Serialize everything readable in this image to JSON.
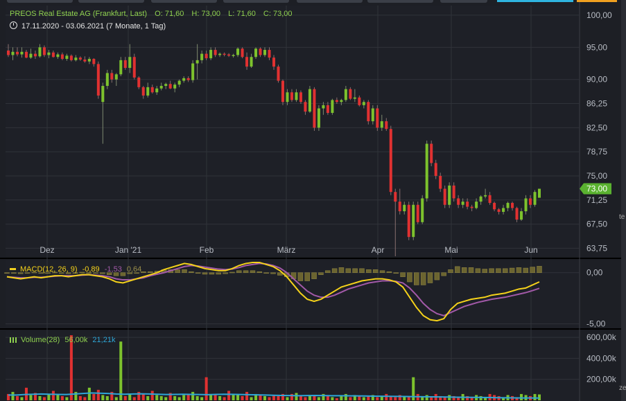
{
  "header": {
    "title": "PREOS Real Estate AG (Frankfurt, Last)",
    "open_label": "O:",
    "open": "71,60",
    "high_label": "H:",
    "high": "73,00",
    "low_label": "L:",
    "low": "71,60",
    "close_label": "C:",
    "close": "73,00",
    "range": "17.11.2020 - 03.06.2021",
    "period": "(7 Monate, 1 Tag)"
  },
  "price_axis_ticks": [
    "100,00",
    "95,00",
    "90,00",
    "86,25",
    "82,50",
    "78,75",
    "75,00",
    "71,25",
    "67,50",
    "63,75"
  ],
  "current_price_tag": "73,00",
  "x_axis_ticks": [
    "Dez",
    "Jan '21",
    "Feb",
    "März",
    "Apr",
    "Mai",
    "Jun"
  ],
  "macd": {
    "label": "MACD(12, 26, 9)",
    "macd_value": "-0,89",
    "signal_value": "-1,53",
    "hist_value": "0,64",
    "axis_ticks": [
      "0,00",
      "-5,00"
    ]
  },
  "volume": {
    "label": "Volume(28)",
    "value1": "56,00k",
    "value2": "21,21k",
    "axis_ticks": [
      "600,00k",
      "400,00k",
      "200,00k"
    ]
  },
  "colors": {
    "up": "#7dc22d",
    "down": "#e03131",
    "macd_line": "#f5d21a",
    "signal_line": "#a259a8",
    "hist": "#6b6430",
    "vol_ma": "#2ea7d8",
    "bg": "#1d1f25",
    "grid": "#30333a",
    "tag": "#5ab230",
    "title_green": "#8fd14f"
  },
  "edge_texts": {
    "right_top": "te",
    "right_bottom": "ze"
  },
  "chart_data": {
    "type": "candlestick",
    "y_range": [
      62.5,
      101.5
    ],
    "x_axis": {
      "categories": [
        "Dez",
        "Jan '21",
        "Feb",
        "März",
        "Apr",
        "Mai",
        "Jun"
      ]
    },
    "candles": [
      {
        "o": 94.5,
        "h": 95.5,
        "l": 93.5,
        "c": 93.8
      },
      {
        "o": 93.8,
        "h": 95.0,
        "l": 93.0,
        "c": 94.3
      },
      {
        "o": 94.3,
        "h": 95.0,
        "l": 93.6,
        "c": 93.9
      },
      {
        "o": 93.9,
        "h": 95.0,
        "l": 93.4,
        "c": 94.3
      },
      {
        "o": 94.3,
        "h": 94.6,
        "l": 93.3,
        "c": 93.4
      },
      {
        "o": 93.4,
        "h": 94.8,
        "l": 93.2,
        "c": 94.0
      },
      {
        "o": 94.0,
        "h": 94.5,
        "l": 93.2,
        "c": 93.6
      },
      {
        "o": 93.6,
        "h": 95.5,
        "l": 93.4,
        "c": 95.0
      },
      {
        "o": 95.0,
        "h": 95.3,
        "l": 93.5,
        "c": 93.8
      },
      {
        "o": 93.8,
        "h": 94.6,
        "l": 93.3,
        "c": 94.2
      },
      {
        "o": 94.2,
        "h": 94.5,
        "l": 93.4,
        "c": 93.5
      },
      {
        "o": 93.5,
        "h": 94.2,
        "l": 93.2,
        "c": 93.9
      },
      {
        "o": 93.9,
        "h": 94.2,
        "l": 93.0,
        "c": 93.2
      },
      {
        "o": 93.2,
        "h": 94.0,
        "l": 92.9,
        "c": 93.7
      },
      {
        "o": 93.7,
        "h": 93.9,
        "l": 92.8,
        "c": 93.0
      },
      {
        "o": 93.0,
        "h": 93.8,
        "l": 92.8,
        "c": 93.4
      },
      {
        "o": 93.4,
        "h": 93.6,
        "l": 92.9,
        "c": 93.1
      },
      {
        "o": 93.1,
        "h": 93.6,
        "l": 92.6,
        "c": 92.8
      },
      {
        "o": 92.8,
        "h": 93.5,
        "l": 92.4,
        "c": 93.2
      },
      {
        "o": 93.2,
        "h": 93.3,
        "l": 92.0,
        "c": 92.4
      },
      {
        "o": 92.4,
        "h": 92.8,
        "l": 87.0,
        "c": 87.5
      },
      {
        "o": 86.5,
        "h": 89.5,
        "l": 80.0,
        "c": 89.0
      },
      {
        "o": 89.0,
        "h": 91.5,
        "l": 88.5,
        "c": 91.0
      },
      {
        "o": 91.0,
        "h": 91.5,
        "l": 89.5,
        "c": 90.0
      },
      {
        "o": 90.0,
        "h": 91.0,
        "l": 89.0,
        "c": 90.8
      },
      {
        "o": 90.8,
        "h": 93.5,
        "l": 90.5,
        "c": 93.0
      },
      {
        "o": 93.0,
        "h": 93.5,
        "l": 91.5,
        "c": 91.8
      },
      {
        "o": 91.8,
        "h": 95.5,
        "l": 91.0,
        "c": 93.5
      },
      {
        "o": 93.5,
        "h": 94.0,
        "l": 90.0,
        "c": 90.3
      },
      {
        "o": 90.3,
        "h": 90.5,
        "l": 88.5,
        "c": 88.8
      },
      {
        "o": 88.8,
        "h": 89.0,
        "l": 87.0,
        "c": 87.5
      },
      {
        "o": 87.5,
        "h": 89.5,
        "l": 87.2,
        "c": 88.8
      },
      {
        "o": 88.8,
        "h": 89.2,
        "l": 87.8,
        "c": 88.0
      },
      {
        "o": 88.0,
        "h": 89.0,
        "l": 87.6,
        "c": 88.6
      },
      {
        "o": 88.6,
        "h": 89.5,
        "l": 88.3,
        "c": 89.0
      },
      {
        "o": 89.0,
        "h": 89.5,
        "l": 88.5,
        "c": 89.3
      },
      {
        "o": 89.3,
        "h": 89.8,
        "l": 88.5,
        "c": 88.6
      },
      {
        "o": 88.6,
        "h": 89.5,
        "l": 88.0,
        "c": 89.2
      },
      {
        "o": 89.2,
        "h": 90.0,
        "l": 88.8,
        "c": 89.8
      },
      {
        "o": 89.8,
        "h": 90.5,
        "l": 89.5,
        "c": 90.2
      },
      {
        "o": 90.2,
        "h": 90.5,
        "l": 89.6,
        "c": 89.9
      },
      {
        "o": 89.9,
        "h": 93.0,
        "l": 89.5,
        "c": 92.5
      },
      {
        "o": 92.5,
        "h": 95.5,
        "l": 90.0,
        "c": 93.0
      },
      {
        "o": 93.0,
        "h": 94.5,
        "l": 92.5,
        "c": 94.0
      },
      {
        "o": 94.0,
        "h": 94.5,
        "l": 93.0,
        "c": 93.3
      },
      {
        "o": 93.3,
        "h": 95.0,
        "l": 93.0,
        "c": 94.6
      },
      {
        "o": 94.6,
        "h": 95.0,
        "l": 93.5,
        "c": 93.8
      },
      {
        "o": 93.8,
        "h": 94.2,
        "l": 93.5,
        "c": 94.0
      },
      {
        "o": 94.0,
        "h": 94.2,
        "l": 93.6,
        "c": 93.9
      },
      {
        "o": 93.9,
        "h": 94.1,
        "l": 93.5,
        "c": 93.7
      },
      {
        "o": 93.7,
        "h": 94.0,
        "l": 93.4,
        "c": 93.8
      },
      {
        "o": 93.8,
        "h": 95.0,
        "l": 93.5,
        "c": 94.8
      },
      {
        "o": 94.8,
        "h": 95.0,
        "l": 93.3,
        "c": 93.5
      },
      {
        "o": 93.5,
        "h": 94.2,
        "l": 91.5,
        "c": 92.0
      },
      {
        "o": 92.0,
        "h": 94.0,
        "l": 91.8,
        "c": 93.5
      },
      {
        "o": 93.5,
        "h": 95.0,
        "l": 93.2,
        "c": 94.8
      },
      {
        "o": 94.8,
        "h": 95.0,
        "l": 93.5,
        "c": 93.8
      },
      {
        "o": 93.8,
        "h": 95.0,
        "l": 93.5,
        "c": 94.6
      },
      {
        "o": 94.6,
        "h": 95.0,
        "l": 93.0,
        "c": 93.4
      },
      {
        "o": 93.4,
        "h": 93.8,
        "l": 91.5,
        "c": 92.0
      },
      {
        "o": 92.0,
        "h": 92.3,
        "l": 89.5,
        "c": 89.8
      },
      {
        "o": 89.8,
        "h": 90.0,
        "l": 86.0,
        "c": 86.5
      },
      {
        "o": 86.5,
        "h": 88.5,
        "l": 86.0,
        "c": 88.0
      },
      {
        "o": 88.0,
        "h": 88.5,
        "l": 86.5,
        "c": 86.8
      },
      {
        "o": 86.8,
        "h": 88.5,
        "l": 86.5,
        "c": 88.0
      },
      {
        "o": 88.0,
        "h": 88.3,
        "l": 86.2,
        "c": 86.5
      },
      {
        "o": 86.5,
        "h": 86.8,
        "l": 84.5,
        "c": 85.0
      },
      {
        "o": 85.0,
        "h": 89.0,
        "l": 84.8,
        "c": 88.5
      },
      {
        "o": 88.5,
        "h": 88.8,
        "l": 82.0,
        "c": 82.5
      },
      {
        "o": 82.5,
        "h": 86.0,
        "l": 82.0,
        "c": 85.5
      },
      {
        "o": 85.5,
        "h": 86.5,
        "l": 84.5,
        "c": 86.0
      },
      {
        "o": 86.0,
        "h": 86.5,
        "l": 84.5,
        "c": 84.8
      },
      {
        "o": 84.8,
        "h": 87.0,
        "l": 84.5,
        "c": 86.8
      },
      {
        "o": 86.8,
        "h": 87.2,
        "l": 86.2,
        "c": 86.5
      },
      {
        "o": 86.5,
        "h": 87.0,
        "l": 86.0,
        "c": 86.8
      },
      {
        "o": 86.8,
        "h": 89.0,
        "l": 86.5,
        "c": 88.5
      },
      {
        "o": 88.5,
        "h": 88.8,
        "l": 86.8,
        "c": 87.0
      },
      {
        "o": 87.0,
        "h": 88.5,
        "l": 86.5,
        "c": 87.2
      },
      {
        "o": 87.2,
        "h": 87.5,
        "l": 85.8,
        "c": 86.0
      },
      {
        "o": 86.0,
        "h": 86.8,
        "l": 85.5,
        "c": 86.5
      },
      {
        "o": 86.5,
        "h": 86.8,
        "l": 83.0,
        "c": 83.5
      },
      {
        "o": 83.5,
        "h": 86.0,
        "l": 83.0,
        "c": 85.5
      },
      {
        "o": 85.5,
        "h": 86.0,
        "l": 82.0,
        "c": 82.5
      },
      {
        "o": 82.5,
        "h": 84.5,
        "l": 82.0,
        "c": 83.5
      },
      {
        "o": 83.5,
        "h": 84.0,
        "l": 82.0,
        "c": 82.3
      },
      {
        "o": 82.3,
        "h": 82.8,
        "l": 72.0,
        "c": 72.5
      },
      {
        "o": 72.5,
        "h": 73.0,
        "l": 62.5,
        "c": 71.0
      },
      {
        "o": 71.0,
        "h": 73.0,
        "l": 69.0,
        "c": 69.5
      },
      {
        "o": 69.5,
        "h": 71.0,
        "l": 69.0,
        "c": 70.5
      },
      {
        "o": 70.5,
        "h": 71.0,
        "l": 65.0,
        "c": 65.5
      },
      {
        "o": 65.5,
        "h": 71.0,
        "l": 65.0,
        "c": 70.5
      },
      {
        "o": 70.5,
        "h": 71.0,
        "l": 67.5,
        "c": 67.8
      },
      {
        "o": 67.8,
        "h": 72.0,
        "l": 67.5,
        "c": 71.5
      },
      {
        "o": 71.5,
        "h": 80.5,
        "l": 71.0,
        "c": 80.0
      },
      {
        "o": 80.0,
        "h": 80.5,
        "l": 76.5,
        "c": 77.0
      },
      {
        "o": 77.0,
        "h": 77.5,
        "l": 74.5,
        "c": 75.0
      },
      {
        "o": 75.0,
        "h": 75.5,
        "l": 72.5,
        "c": 73.0
      },
      {
        "o": 73.0,
        "h": 73.5,
        "l": 70.0,
        "c": 70.5
      },
      {
        "o": 70.5,
        "h": 74.0,
        "l": 70.0,
        "c": 73.5
      },
      {
        "o": 73.5,
        "h": 74.0,
        "l": 71.0,
        "c": 71.5
      },
      {
        "o": 71.5,
        "h": 72.0,
        "l": 70.0,
        "c": 70.5
      },
      {
        "o": 70.5,
        "h": 71.5,
        "l": 70.0,
        "c": 71.0
      },
      {
        "o": 71.0,
        "h": 71.5,
        "l": 69.8,
        "c": 70.2
      },
      {
        "o": 70.2,
        "h": 70.5,
        "l": 69.5,
        "c": 70.0
      },
      {
        "o": 70.0,
        "h": 71.5,
        "l": 69.8,
        "c": 71.0
      },
      {
        "o": 71.0,
        "h": 72.0,
        "l": 70.5,
        "c": 71.8
      },
      {
        "o": 71.8,
        "h": 73.0,
        "l": 71.5,
        "c": 72.0
      },
      {
        "o": 72.0,
        "h": 72.5,
        "l": 70.5,
        "c": 70.8
      },
      {
        "o": 70.8,
        "h": 71.0,
        "l": 69.5,
        "c": 69.8
      },
      {
        "o": 69.8,
        "h": 70.0,
        "l": 69.0,
        "c": 69.4
      },
      {
        "o": 69.4,
        "h": 70.5,
        "l": 69.0,
        "c": 70.0
      },
      {
        "o": 70.0,
        "h": 71.0,
        "l": 69.5,
        "c": 70.8
      },
      {
        "o": 70.8,
        "h": 71.0,
        "l": 69.6,
        "c": 70.0
      },
      {
        "o": 70.0,
        "h": 70.2,
        "l": 67.8,
        "c": 68.2
      },
      {
        "o": 68.2,
        "h": 70.0,
        "l": 68.0,
        "c": 69.5
      },
      {
        "o": 69.5,
        "h": 72.0,
        "l": 69.0,
        "c": 71.5
      },
      {
        "o": 71.5,
        "h": 72.0,
        "l": 70.0,
        "c": 70.5
      },
      {
        "o": 70.5,
        "h": 72.8,
        "l": 70.2,
        "c": 72.5
      },
      {
        "o": 71.6,
        "h": 73.0,
        "l": 71.6,
        "c": 73.0
      }
    ],
    "macd_line": [
      -0.4,
      -0.5,
      -0.6,
      -0.5,
      -0.4,
      -0.5,
      -0.4,
      -0.3,
      -0.3,
      -0.4,
      -0.3,
      -0.2,
      -0.2,
      -0.3,
      -0.4,
      -0.6,
      -0.9,
      -1.0,
      -0.8,
      -0.6,
      -0.4,
      -0.2,
      0.0,
      0.3,
      0.5,
      0.7,
      0.9,
      0.8,
      0.6,
      0.4,
      0.3,
      0.2,
      0.2,
      0.4,
      0.7,
      0.9,
      1.0,
      1.0,
      0.8,
      0.6,
      0.2,
      -0.4,
      -1.2,
      -2.0,
      -2.6,
      -2.8,
      -2.6,
      -2.2,
      -1.8,
      -1.4,
      -1.2,
      -1.0,
      -0.8,
      -0.7,
      -0.6,
      -0.6,
      -0.7,
      -0.9,
      -1.4,
      -2.4,
      -3.4,
      -4.2,
      -4.6,
      -4.7,
      -4.5,
      -3.6,
      -3.0,
      -2.8,
      -2.6,
      -2.5,
      -2.4,
      -2.2,
      -2.1,
      -2.0,
      -1.8,
      -1.6,
      -1.5,
      -1.2,
      -0.9
    ],
    "signal_line": [
      -0.4,
      -0.45,
      -0.5,
      -0.5,
      -0.45,
      -0.45,
      -0.4,
      -0.35,
      -0.3,
      -0.3,
      -0.3,
      -0.25,
      -0.2,
      -0.25,
      -0.3,
      -0.4,
      -0.6,
      -0.7,
      -0.7,
      -0.6,
      -0.5,
      -0.3,
      -0.15,
      0.0,
      0.2,
      0.4,
      0.6,
      0.7,
      0.65,
      0.55,
      0.45,
      0.35,
      0.3,
      0.35,
      0.5,
      0.7,
      0.8,
      0.9,
      0.85,
      0.7,
      0.45,
      0.0,
      -0.6,
      -1.2,
      -1.8,
      -2.2,
      -2.4,
      -2.4,
      -2.2,
      -1.9,
      -1.6,
      -1.4,
      -1.2,
      -1.0,
      -0.9,
      -0.8,
      -0.8,
      -0.85,
      -1.0,
      -1.5,
      -2.2,
      -3.0,
      -3.6,
      -4.0,
      -4.2,
      -3.9,
      -3.6,
      -3.3,
      -3.1,
      -2.9,
      -2.75,
      -2.6,
      -2.5,
      -2.4,
      -2.25,
      -2.1,
      -1.95,
      -1.75,
      -1.53
    ],
    "macd_y_range": [
      -5.3,
      1.2
    ],
    "volume": [
      60,
      80,
      40,
      30,
      120,
      50,
      70,
      40,
      30,
      60,
      90,
      50,
      40,
      30,
      620,
      80,
      40,
      30,
      120,
      60,
      100,
      50,
      40,
      80,
      30,
      560,
      40,
      60,
      30,
      80,
      60,
      40,
      90,
      50,
      40,
      30,
      70,
      40,
      30,
      50,
      60,
      80,
      40,
      30,
      220,
      60,
      50,
      40,
      30,
      90,
      60,
      50,
      40,
      80,
      30,
      60,
      50,
      40,
      30,
      50,
      40,
      60,
      30,
      60,
      70,
      40,
      30,
      50,
      40,
      30,
      60,
      40,
      30,
      20,
      40,
      60,
      30,
      50,
      40,
      30,
      40,
      50,
      30,
      40,
      60,
      40,
      30,
      50,
      40,
      30,
      220,
      60,
      40,
      50,
      30,
      60,
      40,
      30,
      50,
      40,
      30,
      60,
      40,
      30,
      50,
      40,
      30,
      60,
      50,
      40,
      30,
      50,
      40,
      30,
      60,
      50,
      40,
      60,
      56
    ],
    "volume_ma": [
      50,
      50,
      55,
      58,
      60,
      58,
      56,
      55,
      60,
      65,
      70,
      68,
      65,
      60,
      58,
      60,
      62,
      60,
      58,
      55,
      56,
      58,
      56,
      55,
      54,
      56,
      58,
      57,
      55,
      54,
      52,
      50,
      48,
      46,
      45,
      44,
      45,
      46,
      45,
      44,
      44,
      43,
      42,
      41,
      40,
      39,
      38,
      37,
      36,
      35,
      34,
      33,
      32,
      31,
      30,
      29,
      28,
      27,
      26,
      25,
      24,
      23,
      22,
      22,
      21.21
    ],
    "volume_y_range": [
      0,
      660000
    ]
  }
}
